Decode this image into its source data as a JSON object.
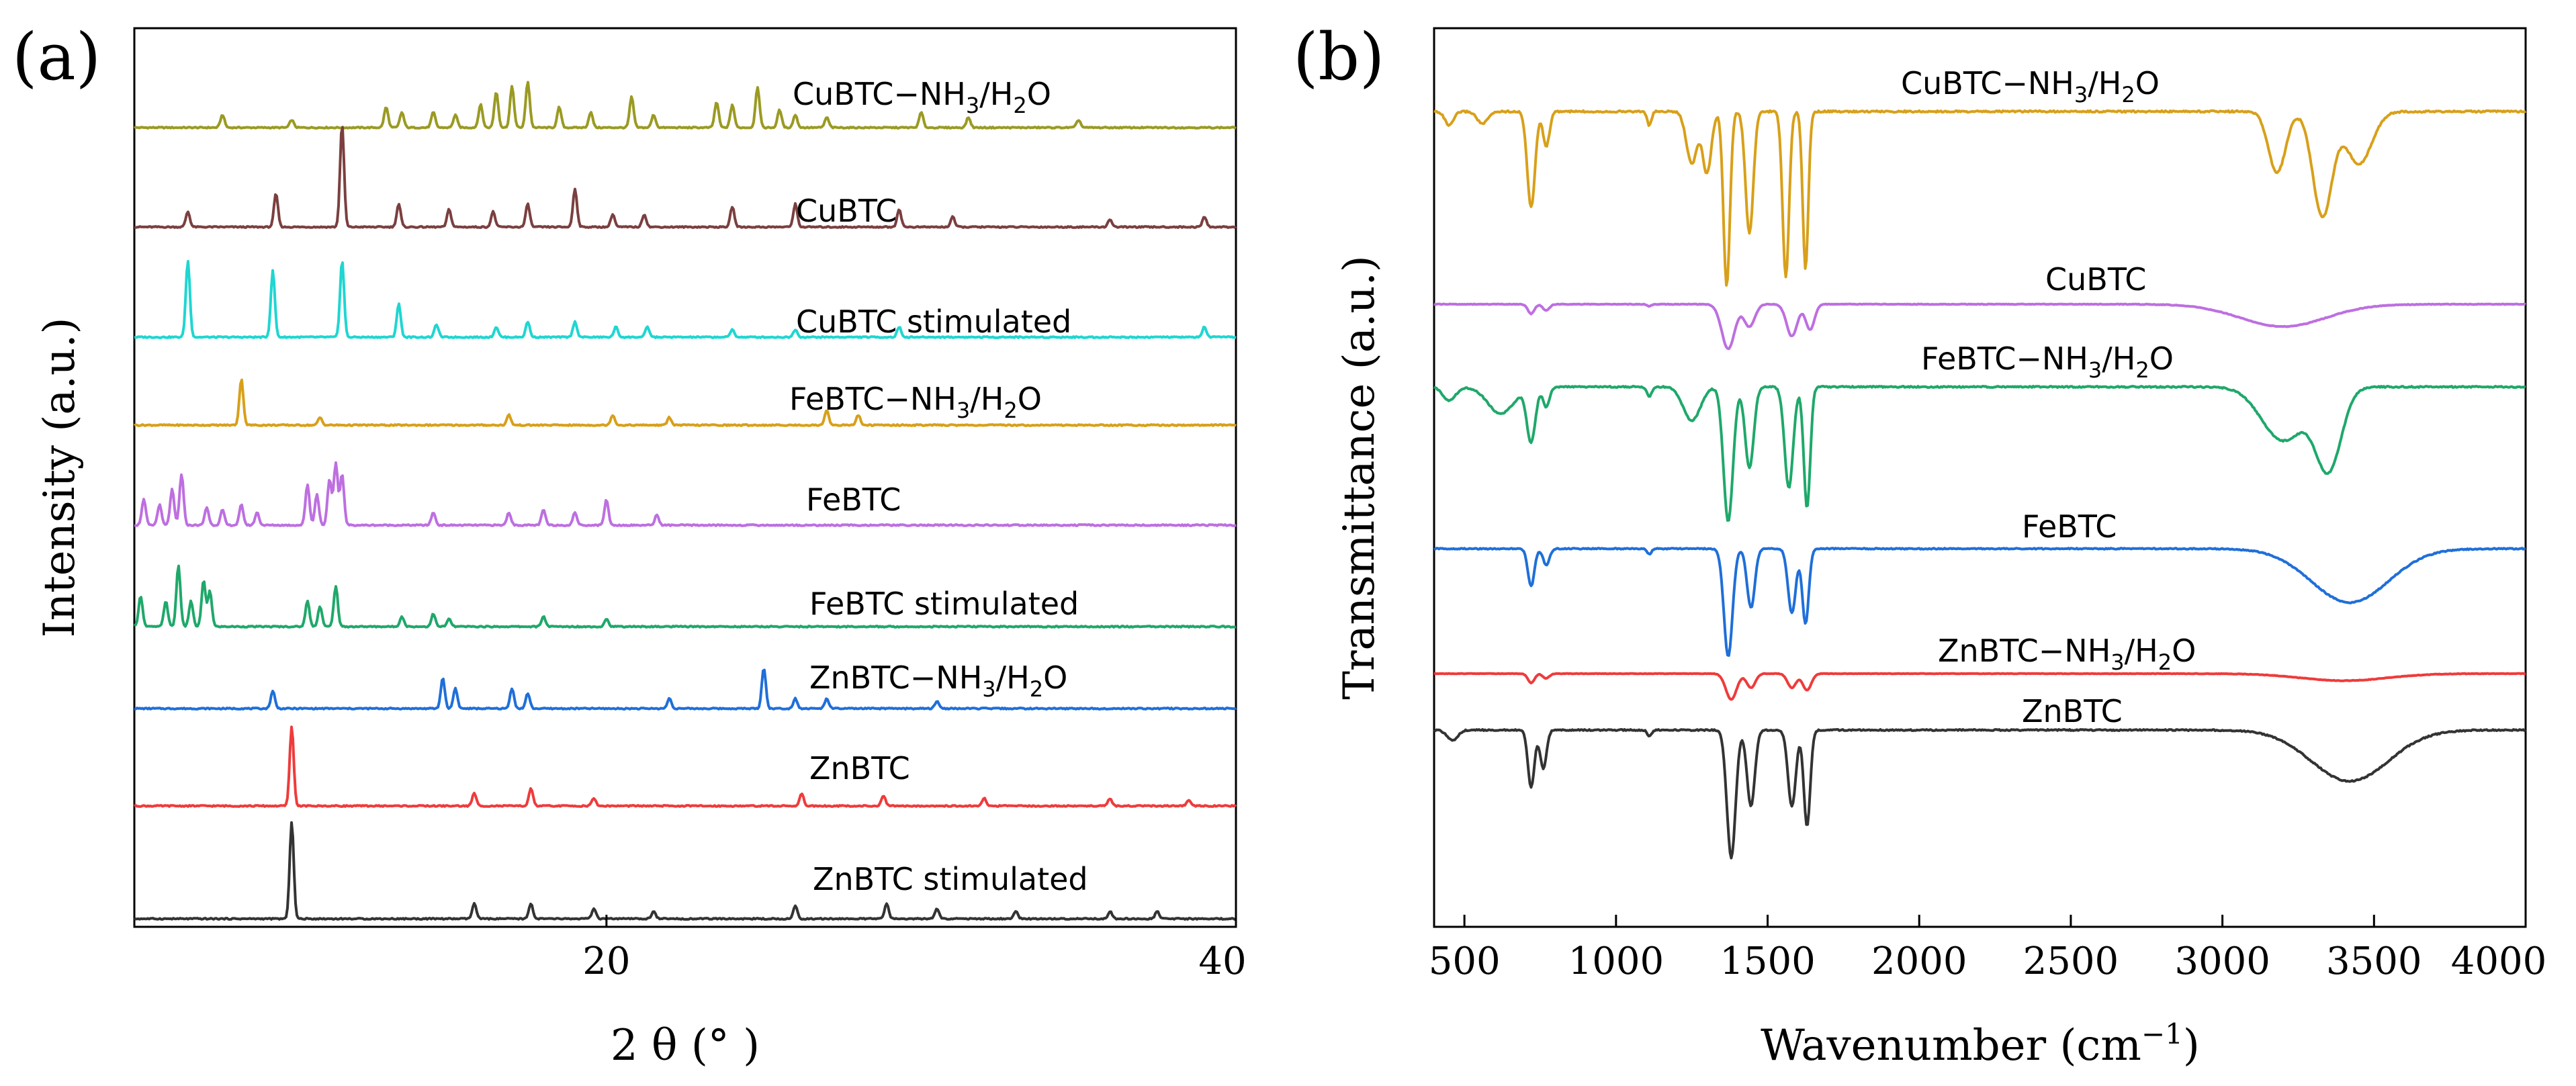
{
  "chart_data": [
    {
      "panel": "(a)",
      "type": "line",
      "xlabel": "2 θ (°  )",
      "ylabel": "Intensity (a.u.)",
      "xlim": [
        5,
        40
      ],
      "xticks": [
        20,
        40
      ],
      "y_ticks_shown": false,
      "series": [
        {
          "name": "CuBTC−NH3/H2O",
          "label_main": "CuBTC−NH",
          "label_sub1": "3",
          "label_mid": "/H",
          "label_sub2": "2",
          "label_tail": "O",
          "color": "#9a9a23",
          "peaks": [
            [
              7.8,
              0.5
            ],
            [
              10,
              0.3
            ],
            [
              13,
              0.8
            ],
            [
              13.5,
              0.6
            ],
            [
              14.5,
              0.6
            ],
            [
              15.2,
              0.5
            ],
            [
              16,
              0.9
            ],
            [
              16.5,
              1.4
            ],
            [
              17,
              1.6
            ],
            [
              17.5,
              1.8
            ],
            [
              18.5,
              0.8
            ],
            [
              19.5,
              0.6
            ],
            [
              20.8,
              1.2
            ],
            [
              21.5,
              0.5
            ],
            [
              23.5,
              1.0
            ],
            [
              24,
              0.9
            ],
            [
              24.8,
              1.6
            ],
            [
              25.5,
              0.7
            ],
            [
              26,
              0.5
            ],
            [
              27,
              0.4
            ],
            [
              30,
              0.6
            ],
            [
              31.5,
              0.4
            ],
            [
              35,
              0.3
            ]
          ]
        },
        {
          "name": "CuBTC",
          "label_main": "CuBTC",
          "color": "#7b3f3f",
          "peaks": [
            [
              6.7,
              0.6
            ],
            [
              9.5,
              1.3
            ],
            [
              11.6,
              4.0
            ],
            [
              13.4,
              0.9
            ],
            [
              15,
              0.7
            ],
            [
              16.4,
              0.6
            ],
            [
              17.5,
              0.9
            ],
            [
              19,
              1.5
            ],
            [
              20.2,
              0.5
            ],
            [
              21.2,
              0.5
            ],
            [
              24,
              0.8
            ],
            [
              26,
              0.9
            ],
            [
              29.3,
              0.7
            ],
            [
              31,
              0.4
            ],
            [
              36,
              0.3
            ],
            [
              39,
              0.4
            ]
          ]
        },
        {
          "name": "CuBTC stimulated",
          "label_main": "CuBTC stimulated",
          "color": "#1fd6d1",
          "peaks": [
            [
              6.7,
              3.0
            ],
            [
              9.4,
              2.6
            ],
            [
              11.6,
              3.0
            ],
            [
              13.4,
              1.3
            ],
            [
              14.6,
              0.5
            ],
            [
              16.5,
              0.4
            ],
            [
              17.5,
              0.6
            ],
            [
              19,
              0.6
            ],
            [
              20.3,
              0.4
            ],
            [
              21.3,
              0.4
            ],
            [
              24,
              0.3
            ],
            [
              26,
              0.3
            ],
            [
              29.3,
              0.4
            ],
            [
              39,
              0.4
            ]
          ]
        },
        {
          "name": "FeBTC−NH3/H2O",
          "label_main": "FeBTC−NH",
          "label_sub1": "3",
          "label_mid": "/H",
          "label_sub2": "2",
          "label_tail": "O",
          "color": "#d8a01a",
          "peaks": [
            [
              8.4,
              1.8
            ],
            [
              10.9,
              0.3
            ],
            [
              16.9,
              0.4
            ],
            [
              20.2,
              0.4
            ],
            [
              22,
              0.3
            ],
            [
              27,
              0.6
            ],
            [
              28,
              0.4
            ]
          ]
        },
        {
          "name": "FeBTC",
          "label_main": "FeBTC",
          "color": "#bd6fe0",
          "peaks": [
            [
              5.3,
              1.0
            ],
            [
              5.8,
              0.8
            ],
            [
              6.2,
              1.4
            ],
            [
              6.5,
              2.0
            ],
            [
              7.3,
              0.7
            ],
            [
              7.8,
              0.6
            ],
            [
              8.4,
              0.8
            ],
            [
              8.9,
              0.5
            ],
            [
              10.5,
              1.6
            ],
            [
              10.8,
              1.2
            ],
            [
              11.2,
              1.8
            ],
            [
              11.4,
              2.4
            ],
            [
              11.6,
              2.0
            ],
            [
              14.5,
              0.5
            ],
            [
              16.9,
              0.5
            ],
            [
              18,
              0.6
            ],
            [
              19,
              0.5
            ],
            [
              20,
              1.0
            ],
            [
              21.6,
              0.4
            ]
          ]
        },
        {
          "name": "FeBTC stimulated",
          "label_main": "FeBTC stimulated",
          "color": "#1fa86a",
          "peaks": [
            [
              5.2,
              1.2
            ],
            [
              6,
              1.0
            ],
            [
              6.4,
              2.4
            ],
            [
              6.8,
              1.0
            ],
            [
              7.2,
              1.8
            ],
            [
              7.4,
              1.4
            ],
            [
              10.5,
              1.0
            ],
            [
              10.9,
              0.8
            ],
            [
              11.4,
              1.6
            ],
            [
              13.5,
              0.4
            ],
            [
              14.5,
              0.5
            ],
            [
              15,
              0.3
            ],
            [
              18,
              0.4
            ],
            [
              20,
              0.3
            ]
          ]
        },
        {
          "name": "ZnBTC−NH3/H2O",
          "label_main": "ZnBTC−NH",
          "label_sub1": "3",
          "label_mid": "/H",
          "label_sub2": "2",
          "label_tail": "O",
          "color": "#1f6fd8",
          "peaks": [
            [
              9.4,
              0.7
            ],
            [
              14.8,
              1.2
            ],
            [
              15.2,
              0.8
            ],
            [
              17,
              0.8
            ],
            [
              17.5,
              0.6
            ],
            [
              22,
              0.4
            ],
            [
              25,
              1.6
            ],
            [
              26,
              0.4
            ],
            [
              27,
              0.4
            ],
            [
              30.5,
              0.3
            ]
          ]
        },
        {
          "name": "ZnBTC",
          "label_main": "ZnBTC",
          "color": "#ef3b3b",
          "peaks": [
            [
              10,
              3.1
            ],
            [
              15.8,
              0.5
            ],
            [
              17.6,
              0.7
            ],
            [
              19.6,
              0.3
            ],
            [
              26.2,
              0.5
            ],
            [
              28.8,
              0.4
            ],
            [
              32,
              0.3
            ],
            [
              36,
              0.3
            ],
            [
              38.5,
              0.2
            ]
          ]
        },
        {
          "name": "ZnBTC stimulated",
          "label_main": "ZnBTC stimulated",
          "color": "#333333",
          "peaks": [
            [
              10,
              3.8
            ],
            [
              15.8,
              0.6
            ],
            [
              17.6,
              0.6
            ],
            [
              19.6,
              0.4
            ],
            [
              21.5,
              0.3
            ],
            [
              26,
              0.5
            ],
            [
              28.9,
              0.6
            ],
            [
              30.5,
              0.4
            ],
            [
              33,
              0.3
            ],
            [
              36,
              0.3
            ],
            [
              37.5,
              0.3
            ]
          ]
        }
      ]
    },
    {
      "panel": "(b)",
      "type": "line",
      "xlabel": "Wavenumber (cm",
      "xlabel_sup": "−1",
      "xlabel_tail": ")",
      "ylabel": "Transmittance (a.u.)",
      "xlim": [
        400,
        4000
      ],
      "xticks": [
        500,
        1000,
        1500,
        2000,
        2500,
        3000,
        3500,
        4000
      ],
      "y_ticks_shown": false,
      "series": [
        {
          "name": "CuBTC−NH3/H2O",
          "label_main": "CuBTC−NH",
          "label_sub1": "3",
          "label_mid": "/H",
          "label_sub2": "2",
          "label_tail": "O",
          "color": "#d8a01a",
          "bands": [
            [
              450,
              0.08,
              20
            ],
            [
              560,
              0.07,
              25
            ],
            [
              720,
              0.55,
              18
            ],
            [
              770,
              0.2,
              15
            ],
            [
              1110,
              0.08,
              10
            ],
            [
              1250,
              0.3,
              25
            ],
            [
              1300,
              0.35,
              20
            ],
            [
              1365,
              1.0,
              15
            ],
            [
              1440,
              0.7,
              18
            ],
            [
              1560,
              0.95,
              15
            ],
            [
              1625,
              0.9,
              13
            ],
            [
              3180,
              0.35,
              40
            ],
            [
              3330,
              0.6,
              45
            ],
            [
              3450,
              0.3,
              60
            ]
          ]
        },
        {
          "name": "CuBTC",
          "label_main": "CuBTC",
          "color": "#bd6fe0",
          "bands": [
            [
              720,
              0.15,
              15
            ],
            [
              770,
              0.1,
              15
            ],
            [
              1110,
              0.03,
              10
            ],
            [
              1370,
              0.7,
              30
            ],
            [
              1440,
              0.35,
              25
            ],
            [
              1580,
              0.5,
              25
            ],
            [
              1640,
              0.4,
              20
            ],
            [
              3200,
              0.35,
              200
            ]
          ]
        },
        {
          "name": "FeBTC−NH3/H2O",
          "label_main": "FeBTC−NH",
          "label_sub1": "3",
          "label_mid": "/H",
          "label_sub2": "2",
          "label_tail": "O",
          "color": "#1fa86a",
          "bands": [
            [
              450,
              0.1,
              30
            ],
            [
              620,
              0.2,
              60
            ],
            [
              720,
              0.4,
              20
            ],
            [
              770,
              0.15,
              15
            ],
            [
              1110,
              0.07,
              12
            ],
            [
              1250,
              0.25,
              40
            ],
            [
              1370,
              1.0,
              22
            ],
            [
              1440,
              0.6,
              20
            ],
            [
              1570,
              0.75,
              20
            ],
            [
              1630,
              0.9,
              15
            ],
            [
              3200,
              0.4,
              100
            ],
            [
              3350,
              0.6,
              60
            ]
          ]
        },
        {
          "name": "FeBTC",
          "label_main": "FeBTC",
          "color": "#1f6fd8",
          "bands": [
            [
              720,
              0.35,
              15
            ],
            [
              770,
              0.15,
              15
            ],
            [
              1110,
              0.05,
              10
            ],
            [
              1370,
              1.0,
              20
            ],
            [
              1445,
              0.55,
              18
            ],
            [
              1580,
              0.6,
              18
            ],
            [
              1625,
              0.7,
              15
            ],
            [
              3420,
              0.5,
              180
            ]
          ]
        },
        {
          "name": "ZnBTC−NH3/H2O",
          "label_main": "ZnBTC−NH",
          "label_sub1": "3",
          "label_mid": "/H",
          "label_sub2": "2",
          "label_tail": "O",
          "color": "#ef3b3b",
          "bands": [
            [
              720,
              0.2,
              15
            ],
            [
              770,
              0.1,
              15
            ],
            [
              1380,
              0.55,
              25
            ],
            [
              1445,
              0.3,
              20
            ],
            [
              1580,
              0.3,
              20
            ],
            [
              1630,
              0.35,
              20
            ],
            [
              3400,
              0.15,
              200
            ]
          ]
        },
        {
          "name": "ZnBTC",
          "label_main": "ZnBTC",
          "color": "#333333",
          "bands": [
            [
              460,
              0.08,
              25
            ],
            [
              720,
              0.45,
              15
            ],
            [
              760,
              0.3,
              15
            ],
            [
              1110,
              0.05,
              10
            ],
            [
              1380,
              1.0,
              20
            ],
            [
              1445,
              0.6,
              18
            ],
            [
              1580,
              0.6,
              18
            ],
            [
              1630,
              0.75,
              15
            ],
            [
              3420,
              0.4,
              180
            ]
          ]
        }
      ]
    }
  ]
}
